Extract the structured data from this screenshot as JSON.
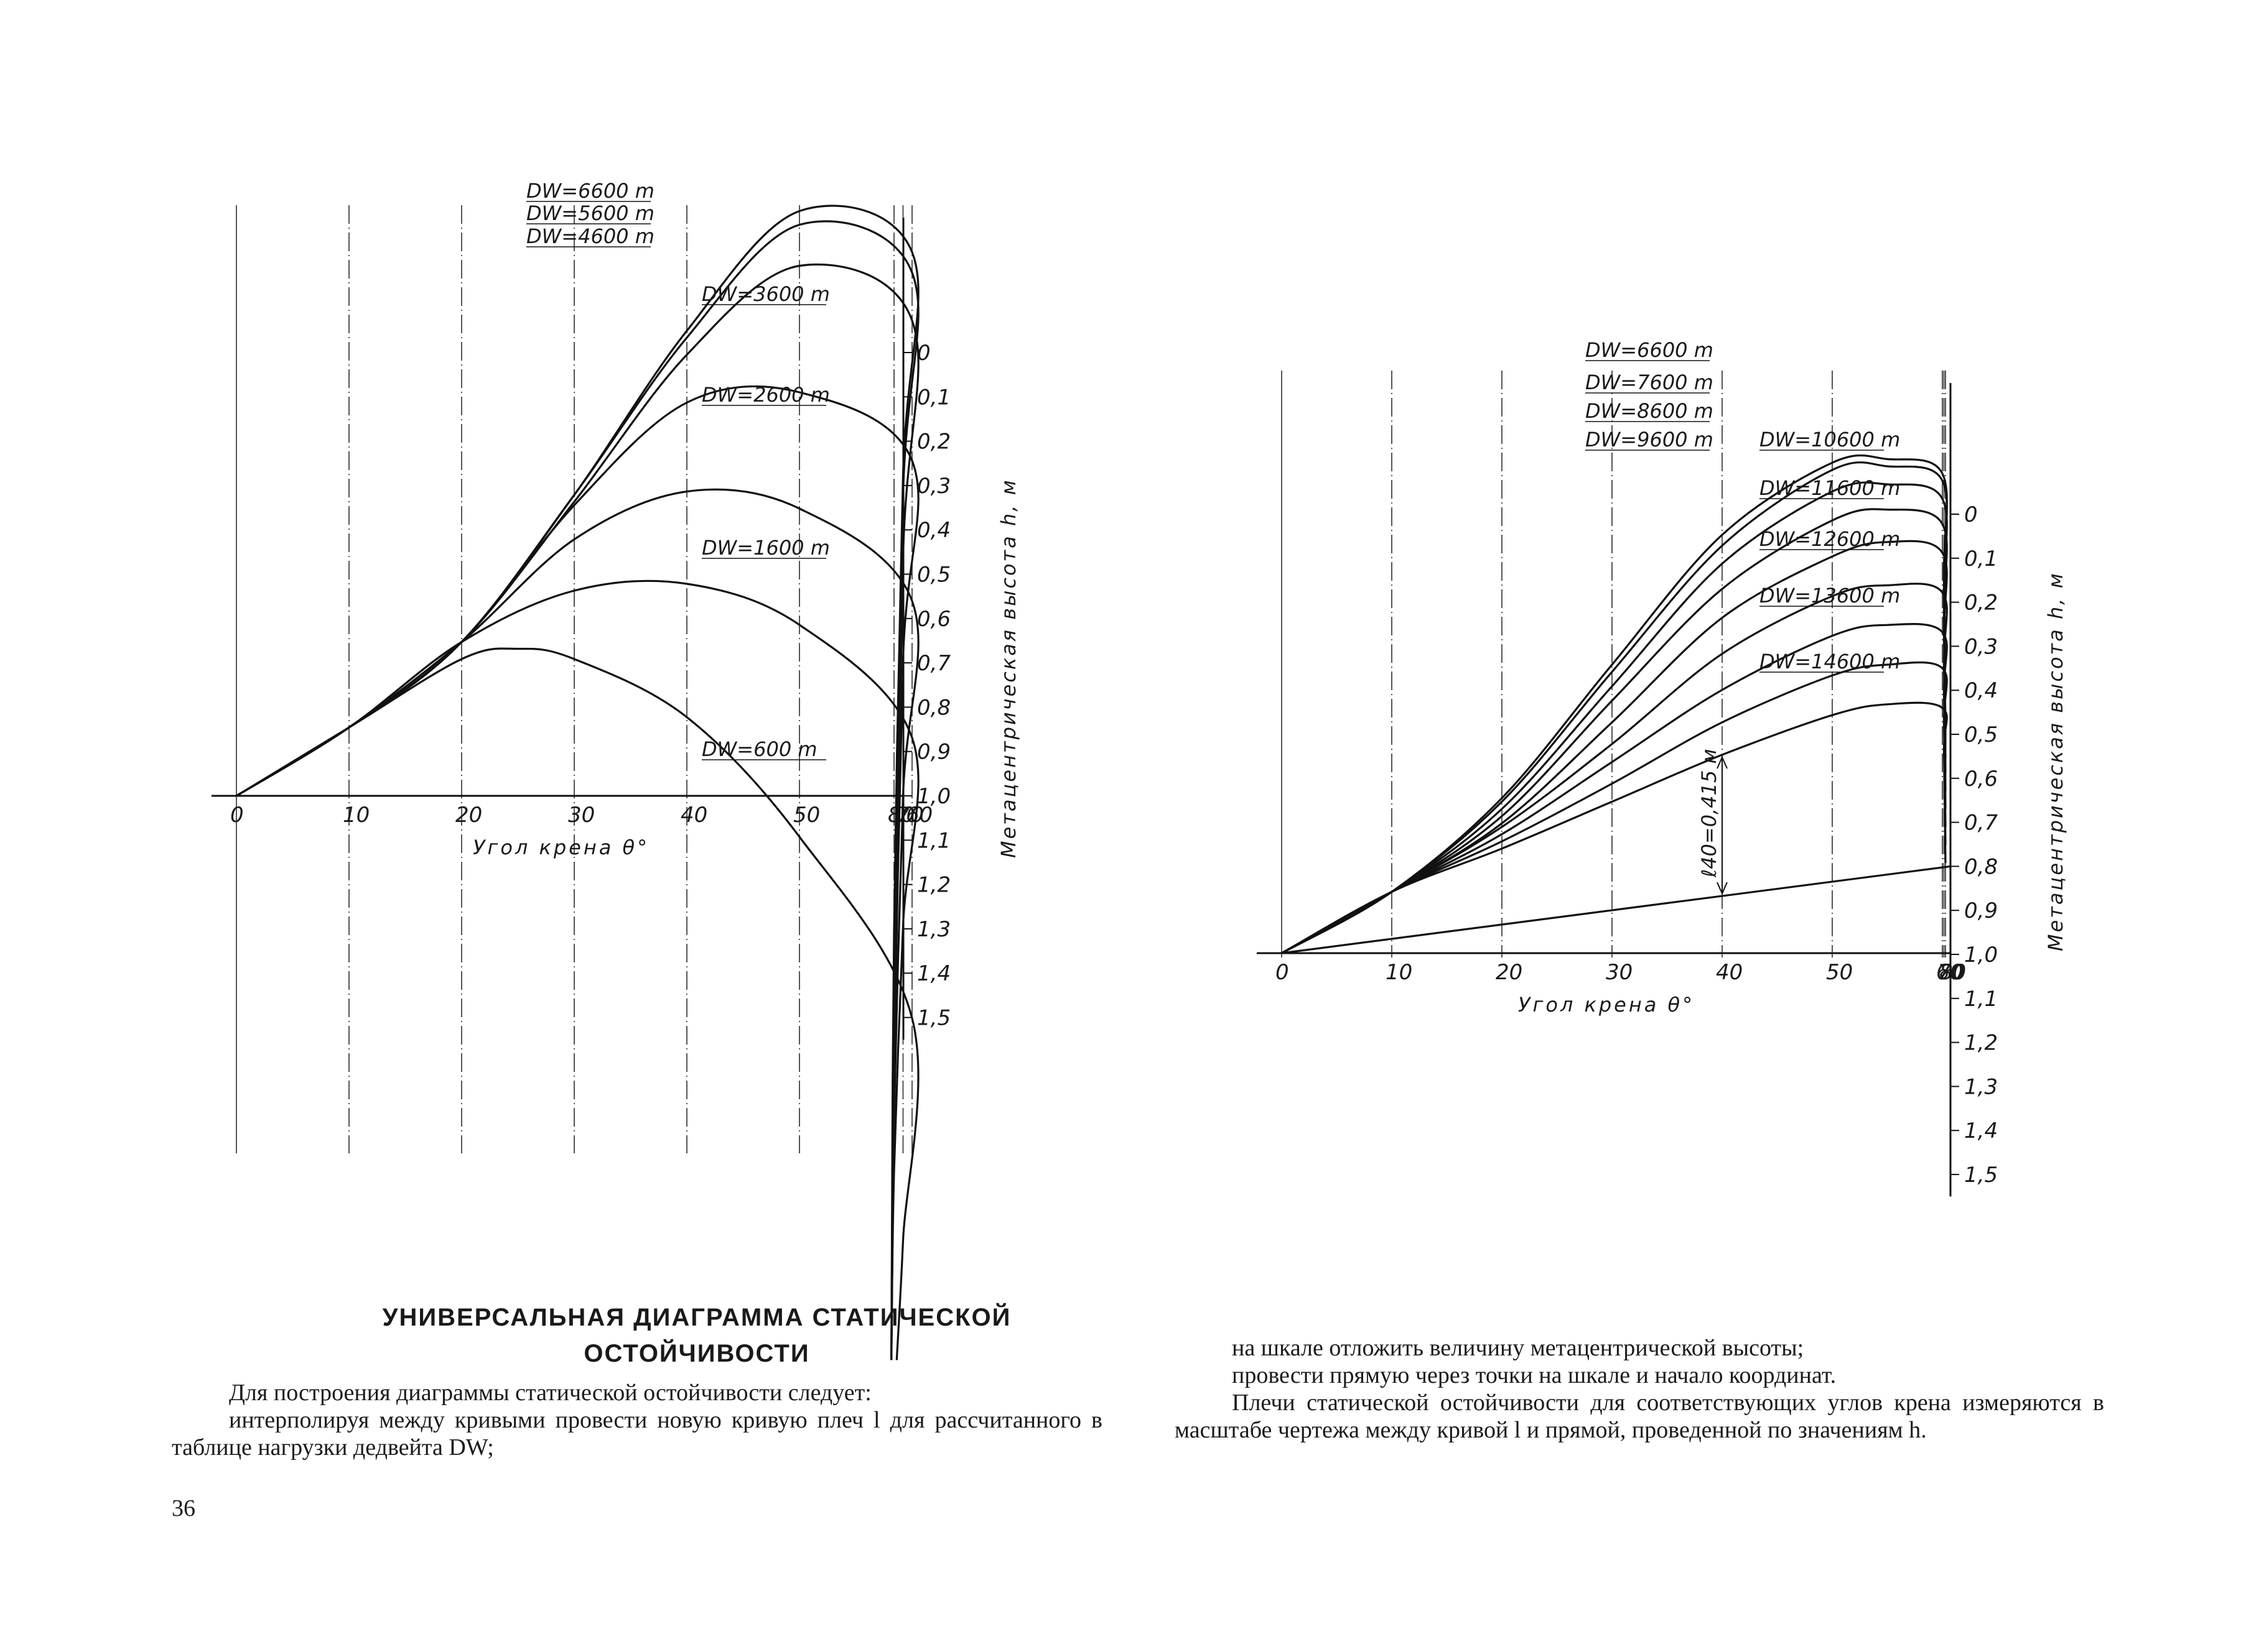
{
  "chart_data": [
    {
      "type": "line",
      "xlabel": "Угол крена θ°",
      "ylabel": "Метацентрическая высота h, м",
      "x_ticks": [
        "0",
        "10",
        "20",
        "30",
        "40",
        "50",
        "60",
        "70",
        "80"
      ],
      "h_scale_ticks": [
        "0",
        "0,1",
        "0,2",
        "0,3",
        "0,4",
        "0,5",
        "0,6",
        "0,7",
        "0,8",
        "0,9",
        "1,0",
        "1,1",
        "1,2",
        "1,3",
        "1,4",
        "1,5"
      ],
      "xlim": [
        0,
        83
      ],
      "grid": "vertical lines at 0, 10, 20, 30, 40, 50, 60, 70, 80",
      "series": [
        {
          "name": "DW=6600 m",
          "x": [
            0,
            10,
            20,
            30,
            40,
            50,
            60,
            70,
            80,
            83
          ],
          "y": [
            0,
            0.2,
            0.45,
            0.88,
            1.36,
            1.71,
            1.59,
            0.94,
            -0.4,
            -1.65
          ]
        },
        {
          "name": "DW=5600 m",
          "x": [
            0,
            10,
            20,
            30,
            40,
            50,
            60,
            70,
            80,
            83
          ],
          "y": [
            0,
            0.2,
            0.45,
            0.88,
            1.34,
            1.67,
            1.53,
            0.88,
            -0.55,
            -1.65
          ]
        },
        {
          "name": "DW=4600 m",
          "x": [
            0,
            10,
            20,
            30,
            40,
            50,
            60,
            70,
            80,
            83
          ],
          "y": [
            0,
            0.2,
            0.45,
            0.86,
            1.29,
            1.55,
            1.39,
            0.7,
            -0.8,
            -1.65
          ]
        },
        {
          "name": "DW=3600 m",
          "x": [
            0,
            10,
            20,
            30,
            40,
            50,
            60,
            70,
            80,
            83
          ],
          "y": [
            0,
            0.2,
            0.45,
            0.85,
            1.15,
            1.18,
            0.98,
            0.4,
            -0.82,
            -1.65
          ]
        },
        {
          "name": "DW=2600 m",
          "x": [
            0,
            10,
            20,
            30,
            40,
            50,
            60,
            70,
            80,
            83
          ],
          "y": [
            0,
            0.2,
            0.45,
            0.75,
            0.89,
            0.84,
            0.57,
            0.0,
            -0.95,
            -1.65
          ]
        },
        {
          "name": "DW=1600 m",
          "x": [
            0,
            10,
            20,
            30,
            40,
            50,
            60,
            70,
            80,
            83
          ],
          "y": [
            0,
            0.2,
            0.45,
            0.6,
            0.62,
            0.5,
            0.17,
            -0.38,
            -1.1,
            -1.65
          ]
        },
        {
          "name": "DW=600 m",
          "x": [
            0,
            10,
            20,
            25,
            30,
            40,
            50,
            60,
            70,
            77
          ],
          "y": [
            0,
            0.2,
            0.4,
            0.43,
            0.4,
            0.23,
            -0.12,
            -0.65,
            -1.3,
            -1.65
          ]
        }
      ]
    },
    {
      "type": "line",
      "xlabel": "Угол крена θ°",
      "ylabel": "Метацентрическая высота h, м",
      "x_ticks": [
        "0",
        "10",
        "20",
        "30",
        "40",
        "50",
        "60",
        "70",
        "80"
      ],
      "h_scale_ticks": [
        "0",
        "0,1",
        "0,2",
        "0,3",
        "0,4",
        "0,5",
        "0,6",
        "0,7",
        "0,8",
        "0,9",
        "1,0",
        "1,1",
        "1,2",
        "1,3",
        "1,4",
        "1,5"
      ],
      "xlim": [
        0,
        83
      ],
      "grid": "vertical lines at 0, 10, 20, 30, 40, 50, 60, 70, 80",
      "annotation": "ℓ40=0,415 м",
      "h_line": {
        "angle_deg": 80,
        "h_value": 0.8
      },
      "series": [
        {
          "name": "DW=6600 m",
          "x": [
            0,
            10,
            20,
            30,
            40,
            50,
            55,
            60,
            70,
            80
          ],
          "y": [
            0,
            0.17,
            0.43,
            0.8,
            1.16,
            1.36,
            1.37,
            1.33,
            1.05,
            0.6
          ]
        },
        {
          "name": "DW=7600 m",
          "x": [
            0,
            10,
            20,
            30,
            40,
            50,
            55,
            60,
            70,
            80
          ],
          "y": [
            0,
            0.17,
            0.42,
            0.78,
            1.13,
            1.34,
            1.35,
            1.31,
            1.03,
            0.58
          ]
        },
        {
          "name": "DW=8600 m",
          "x": [
            0,
            10,
            20,
            30,
            40,
            50,
            55,
            60,
            70,
            80
          ],
          "y": [
            0,
            0.17,
            0.4,
            0.74,
            1.08,
            1.28,
            1.3,
            1.26,
            0.99,
            0.54
          ]
        },
        {
          "name": "DW=9600 m",
          "x": [
            0,
            10,
            20,
            30,
            40,
            50,
            55,
            60,
            70,
            80
          ],
          "y": [
            0,
            0.17,
            0.38,
            0.7,
            1.01,
            1.2,
            1.23,
            1.19,
            0.94,
            0.5
          ]
        },
        {
          "name": "DW=10600 m",
          "x": [
            0,
            10,
            20,
            30,
            40,
            50,
            55,
            60,
            70,
            80
          ],
          "y": [
            0,
            0.17,
            0.36,
            0.64,
            0.93,
            1.1,
            1.14,
            1.11,
            0.88,
            0.45
          ]
        },
        {
          "name": "DW=11600 m",
          "x": [
            0,
            10,
            20,
            30,
            40,
            50,
            55,
            60,
            70,
            80
          ],
          "y": [
            0,
            0.17,
            0.35,
            0.58,
            0.83,
            0.99,
            1.02,
            1.0,
            0.8,
            0.4
          ]
        },
        {
          "name": "DW=12600 m",
          "x": [
            0,
            10,
            20,
            30,
            40,
            50,
            55,
            60,
            70,
            80
          ],
          "y": [
            0,
            0.17,
            0.33,
            0.53,
            0.73,
            0.88,
            0.91,
            0.89,
            0.72,
            0.35
          ]
        },
        {
          "name": "DW=13600 m",
          "x": [
            0,
            10,
            20,
            30,
            40,
            50,
            55,
            60,
            70,
            80
          ],
          "y": [
            0,
            0.17,
            0.31,
            0.47,
            0.64,
            0.77,
            0.8,
            0.79,
            0.64,
            0.3
          ]
        },
        {
          "name": "DW=14600 m",
          "x": [
            0,
            10,
            20,
            30,
            40,
            50,
            55,
            60,
            70,
            80
          ],
          "y": [
            0,
            0.17,
            0.29,
            0.42,
            0.55,
            0.66,
            0.69,
            0.68,
            0.56,
            0.25
          ]
        }
      ]
    }
  ],
  "text": {
    "heading_line1": "УНИВЕРСАЛЬНАЯ ДИАГРАММА СТАТИЧЕСКОЙ",
    "heading_line2": "ОСТОЙЧИВОСТИ",
    "left_p1": "Для построения диаграммы статической остойчивости следует:",
    "left_p2": "интерполируя между кривыми провести новую кривую плеч l для рассчитанного в таблице нагрузки дедвейта DW;",
    "right_p1": "на шкале отложить величину метацентрической высоты;",
    "right_p2": "провести прямую через точки на шкале и начало координат.",
    "right_p3": "Плечи статической остойчивости для соответствующих углов крена измеряются в масштабе чертежа между кривой l и прямой, проведенной по значениям h.",
    "page_number": "36"
  }
}
